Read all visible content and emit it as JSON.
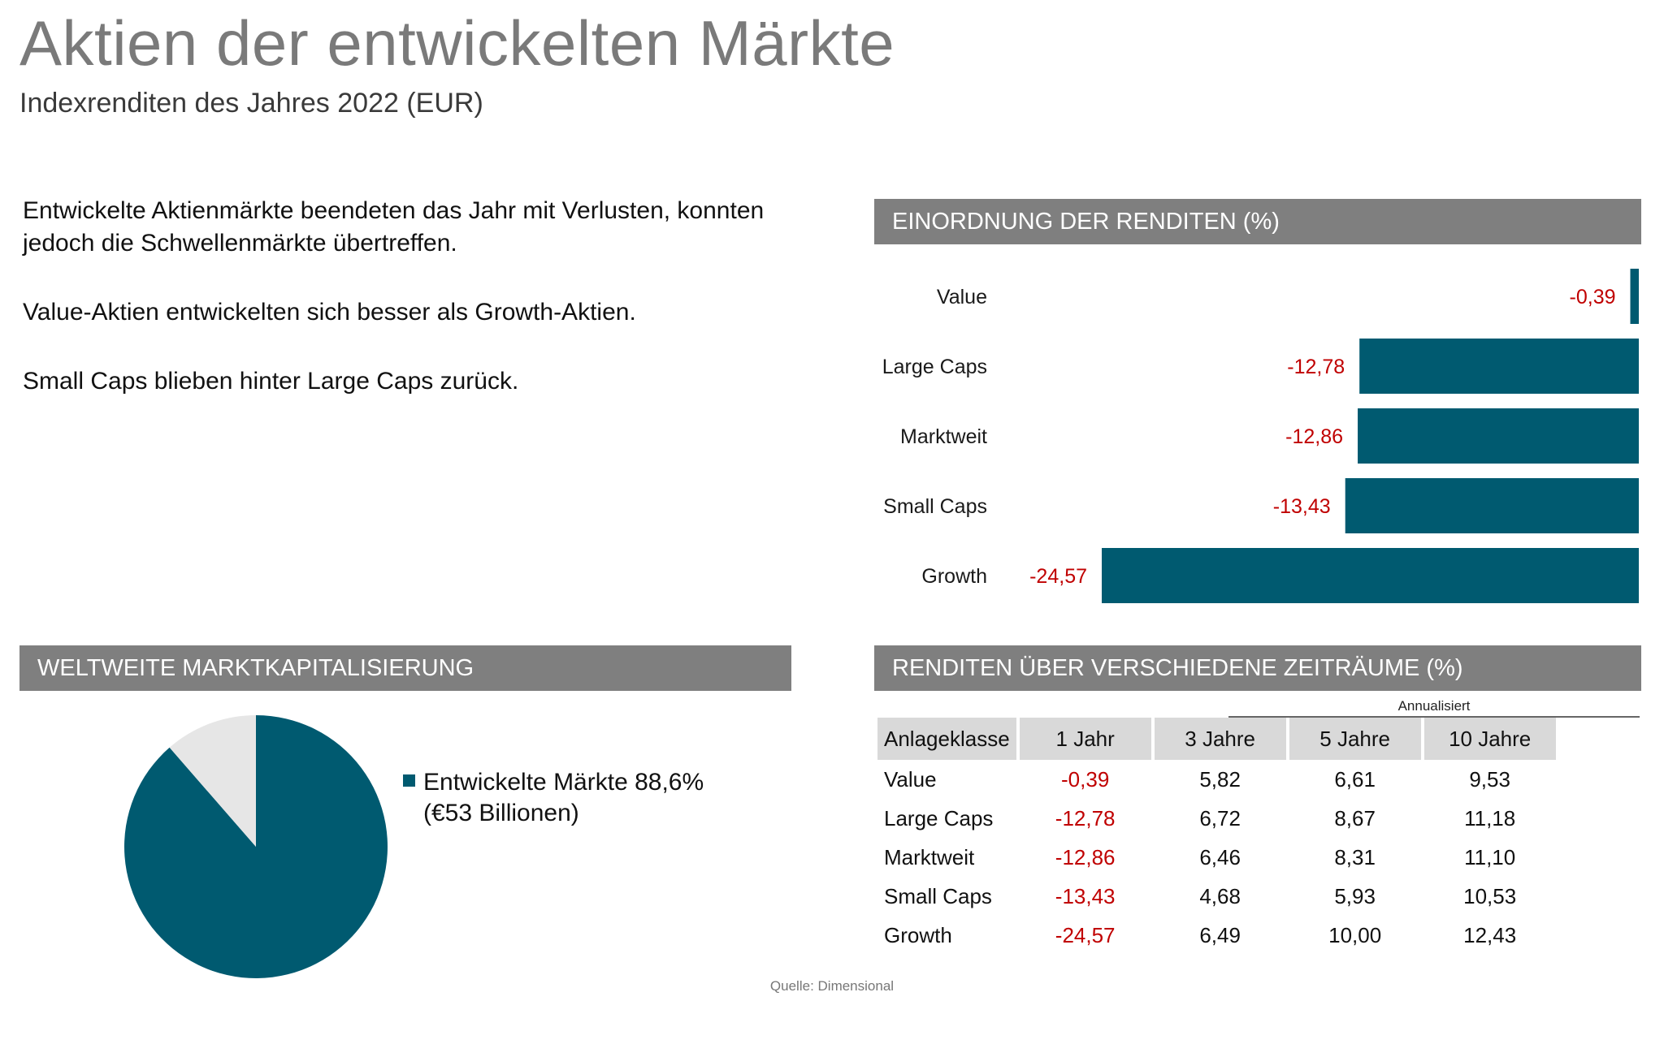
{
  "title": "Aktien der entwickelten Märkte",
  "subtitle": "Indexrenditen des Jahres 2022 (EUR)",
  "bullets": [
    "Entwickelte Aktienmärkte beendeten das Jahr mit Verlusten, konnten jedoch die Schwellenmärkte übertreffen.",
    "Value-Aktien entwickelten sich besser als Growth-Aktien.",
    "Small Caps blieben hinter Large Caps zurück."
  ],
  "colors": {
    "bar": "#005a70",
    "negative": "#c00000",
    "header_bg": "#7f7f7f",
    "pie_rest": "#e6e6e6"
  },
  "bar_section_title": "EINORDNUNG DER RENDITEN (%)",
  "chart_data": [
    {
      "type": "bar",
      "orientation": "horizontal",
      "categories": [
        "Value",
        "Large Caps",
        "Marktweit",
        "Small Caps",
        "Growth"
      ],
      "values": [
        -0.39,
        -12.78,
        -12.86,
        -13.43,
        -24.57
      ],
      "value_labels": [
        "-0,39",
        "-12,78",
        "-12,86",
        "-13,43",
        "-24,57"
      ],
      "xlim": [
        -24.57,
        0
      ],
      "grid": false
    },
    {
      "type": "pie",
      "title": "WELTWEITE MARKTKAPITALISIERUNG",
      "slices": [
        {
          "name": "Entwickelte Märkte",
          "value": 88.6
        },
        {
          "name": "",
          "value": 11.4
        }
      ],
      "legend": {
        "label": "Entwickelte Märkte 88,6%",
        "sublabel": "(€53 Billionen)"
      }
    },
    {
      "type": "table",
      "title": "RENDITEN ÜBER VERSCHIEDENE ZEITRÄUME (%)",
      "group_label": "Annualisiert",
      "columns": [
        "Anlageklasse",
        "1 Jahr",
        "3 Jahre",
        "5 Jahre",
        "10 Jahre"
      ],
      "rows": [
        [
          "Value",
          "-0,39",
          "5,82",
          "6,61",
          "9,53"
        ],
        [
          "Large Caps",
          "-12,78",
          "6,72",
          "8,67",
          "11,18"
        ],
        [
          "Marktweit",
          "-12,86",
          "6,46",
          "8,31",
          "11,10"
        ],
        [
          "Small Caps",
          "-13,43",
          "4,68",
          "5,93",
          "10,53"
        ],
        [
          "Growth",
          "-24,57",
          "6,49",
          "10,00",
          "12,43"
        ]
      ]
    }
  ],
  "source": "Quelle: Dimensional"
}
